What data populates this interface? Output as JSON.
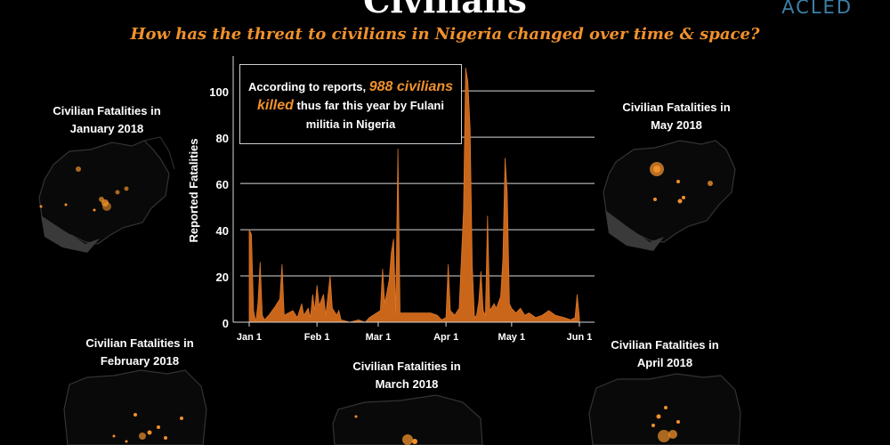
{
  "header": {
    "title": "Civilians",
    "subtitle": "How has the threat to civilians in Nigeria changed over time & space?",
    "logo": "ACLED"
  },
  "callout": {
    "pre": "According to reports,",
    "highlight": "988 civilians killed",
    "post": "thus far this year by Fulani militia in Nigeria"
  },
  "maps": {
    "january": "Civilian Fatalities in January 2018",
    "february": "Civilian Fatalities in February 2018",
    "march": "Civilian Fatalities in March 2018",
    "april": "Civilian Fatalities in April 2018",
    "may": "Civilian Fatalities in May 2018"
  },
  "colors": {
    "accent": "#f0912c",
    "area": "#c9661a",
    "logo": "#3d7fa6"
  },
  "chart_data": {
    "type": "area",
    "ylabel": "Reported Fatalities",
    "ylim": [
      0,
      112
    ],
    "yticks": [
      0,
      20,
      40,
      60,
      80,
      100
    ],
    "xticks": [
      {
        "label": "Jan 1",
        "day": 0
      },
      {
        "label": "Feb 1",
        "day": 31
      },
      {
        "label": "Mar 1",
        "day": 59
      },
      {
        "label": "Apr 1",
        "day": 90
      },
      {
        "label": "May 1",
        "day": 120
      },
      {
        "label": "Jun 1",
        "day": 151
      }
    ],
    "grid": true,
    "series": [
      {
        "points": [
          [
            0,
            0
          ],
          [
            0,
            40
          ],
          [
            1,
            38
          ],
          [
            2,
            5
          ],
          [
            3,
            0
          ],
          [
            4,
            8
          ],
          [
            5,
            26
          ],
          [
            6,
            3
          ],
          [
            7,
            1
          ],
          [
            9,
            3
          ],
          [
            12,
            7
          ],
          [
            14,
            10
          ],
          [
            15,
            25
          ],
          [
            16,
            3
          ],
          [
            18,
            4
          ],
          [
            20,
            5
          ],
          [
            22,
            2
          ],
          [
            24,
            8
          ],
          [
            25,
            3
          ],
          [
            27,
            6
          ],
          [
            28,
            2
          ],
          [
            29,
            12
          ],
          [
            30,
            5
          ],
          [
            31,
            16
          ],
          [
            32,
            7
          ],
          [
            34,
            12
          ],
          [
            35,
            3
          ],
          [
            37,
            20
          ],
          [
            38,
            6
          ],
          [
            40,
            3
          ],
          [
            41,
            5
          ],
          [
            42,
            1
          ],
          [
            46,
            0
          ],
          [
            50,
            1
          ],
          [
            53,
            0
          ],
          [
            55,
            2
          ],
          [
            60,
            5
          ],
          [
            61,
            23
          ],
          [
            62,
            8
          ],
          [
            64,
            18
          ],
          [
            65,
            30
          ],
          [
            66,
            36
          ],
          [
            67,
            4
          ],
          [
            68,
            75
          ],
          [
            69,
            4
          ],
          [
            72,
            4
          ],
          [
            76,
            4
          ],
          [
            79,
            4
          ],
          [
            83,
            4
          ],
          [
            86,
            3
          ],
          [
            88,
            1
          ],
          [
            90,
            2
          ],
          [
            91,
            25
          ],
          [
            92,
            5
          ],
          [
            94,
            3
          ],
          [
            96,
            6
          ],
          [
            98,
            48
          ],
          [
            99,
            110
          ],
          [
            100,
            104
          ],
          [
            101,
            84
          ],
          [
            102,
            25
          ],
          [
            103,
            2
          ],
          [
            104,
            3
          ],
          [
            105,
            9
          ],
          [
            106,
            22
          ],
          [
            107,
            5
          ],
          [
            108,
            3
          ],
          [
            109,
            46
          ],
          [
            110,
            5
          ],
          [
            112,
            8
          ],
          [
            113,
            6
          ],
          [
            115,
            11
          ],
          [
            116,
            27
          ],
          [
            117,
            71
          ],
          [
            118,
            56
          ],
          [
            119,
            8
          ],
          [
            120,
            6
          ],
          [
            122,
            4
          ],
          [
            124,
            6
          ],
          [
            126,
            3
          ],
          [
            128,
            4
          ],
          [
            131,
            2
          ],
          [
            134,
            3
          ],
          [
            137,
            5
          ],
          [
            140,
            3
          ],
          [
            144,
            2
          ],
          [
            147,
            1
          ],
          [
            149,
            2
          ],
          [
            150,
            12
          ],
          [
            151,
            2
          ]
        ]
      }
    ]
  }
}
